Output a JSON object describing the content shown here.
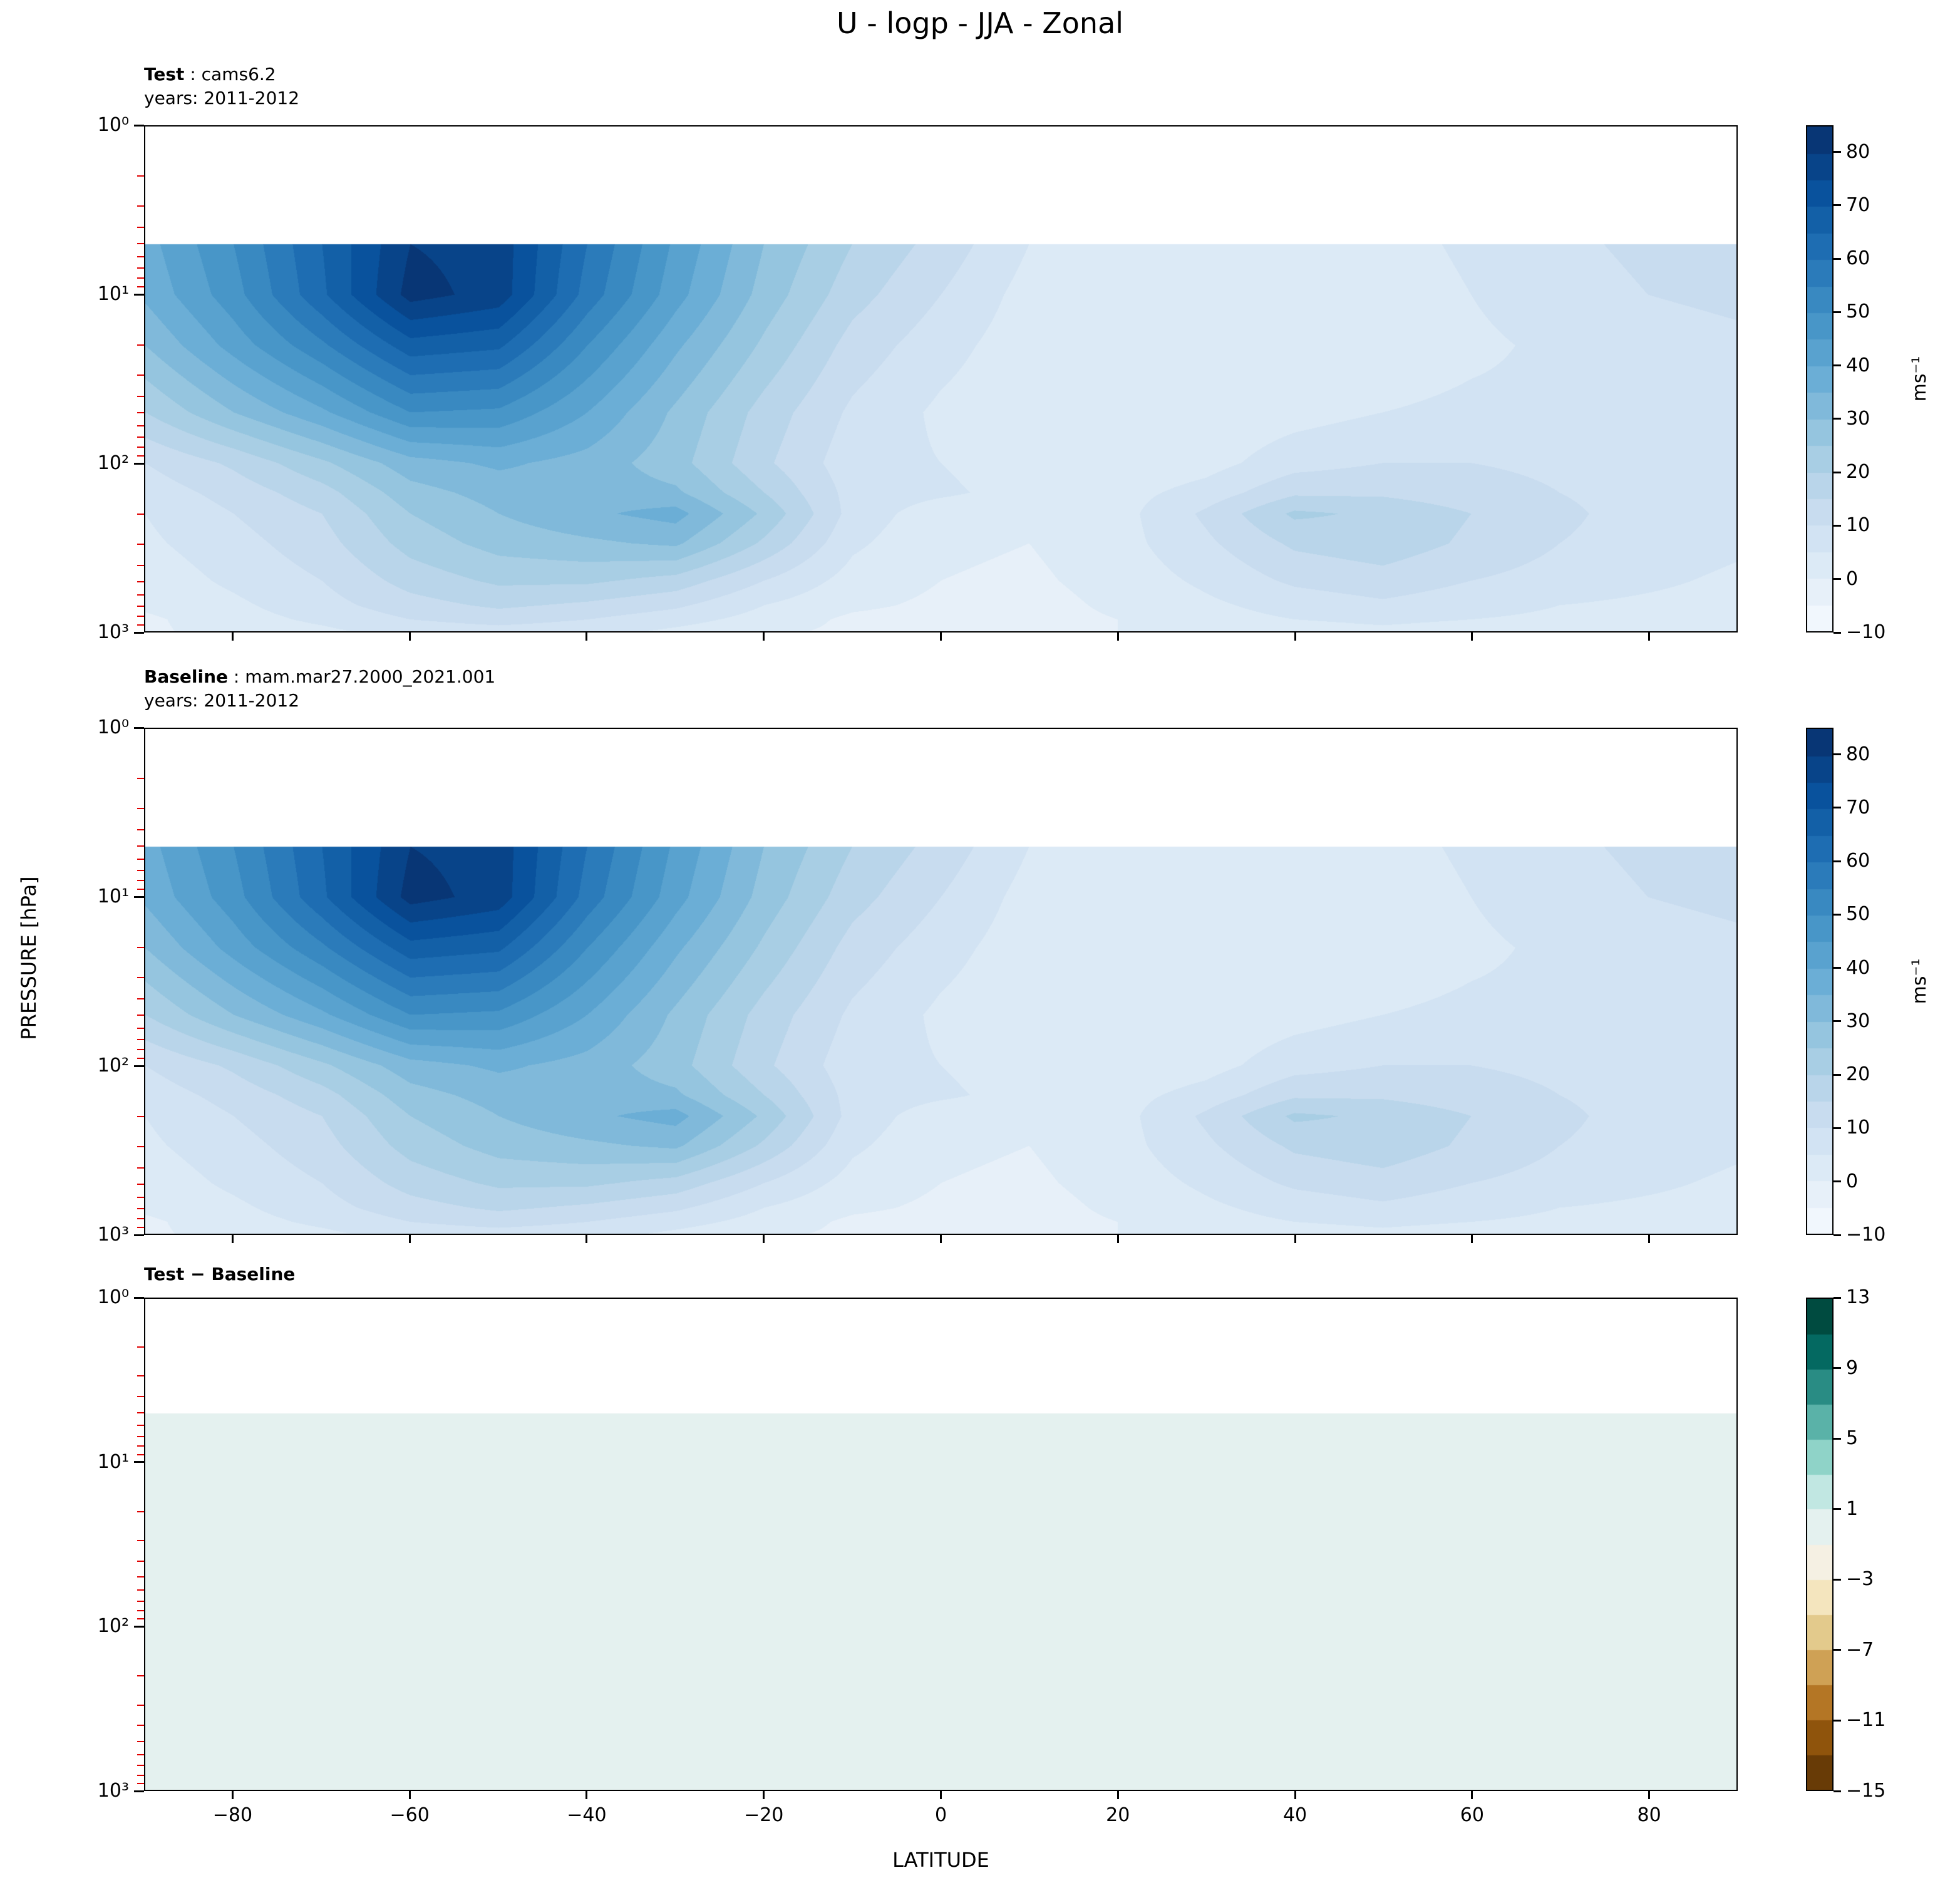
{
  "title": "U - logp - JJA - Zonal",
  "axes": {
    "x_label": "LATITUDE",
    "y_label": "PRESSURE [hPa]",
    "x_range": [
      -90,
      90
    ],
    "y_log_range": [
      0,
      3
    ],
    "x_ticks": [
      {
        "v": -80,
        "label": "−80"
      },
      {
        "v": -60,
        "label": "−60"
      },
      {
        "v": -40,
        "label": "−40"
      },
      {
        "v": -20,
        "label": "−20"
      },
      {
        "v": 0,
        "label": "0"
      },
      {
        "v": 20,
        "label": "20"
      },
      {
        "v": 40,
        "label": "40"
      },
      {
        "v": 60,
        "label": "60"
      },
      {
        "v": 80,
        "label": "80"
      }
    ],
    "y_ticks": [
      {
        "logp": 0,
        "label": "10⁰"
      },
      {
        "logp": 1,
        "label": "10¹"
      },
      {
        "logp": 2,
        "label": "10²"
      },
      {
        "logp": 3,
        "label": "10³"
      }
    ]
  },
  "colors": {
    "blues": [
      "#f7fbff",
      "#deebf7",
      "#c6dbef",
      "#9ecae1",
      "#6baed6",
      "#4292c6",
      "#2171b5",
      "#08519c",
      "#08306b"
    ],
    "brbg": [
      "#543005",
      "#8c510a",
      "#bf812d",
      "#dfc27d",
      "#f6e8c3",
      "#f5f5f5",
      "#c7eae5",
      "#80cdc1",
      "#35978f",
      "#01665e",
      "#003c30"
    ],
    "minor_tick": "#e00000",
    "spine": "#000000",
    "background": "#ffffff"
  },
  "panels": [
    {
      "id": "test",
      "label_bold": "Test",
      "label_rest": " : cams6.2",
      "subtitle": "years: 2011-2012",
      "colorbar": {
        "unit": "ms⁻¹",
        "colormap": "blues",
        "ticks": [
          {
            "v": 80,
            "label": "80"
          },
          {
            "v": 70,
            "label": "70"
          },
          {
            "v": 60,
            "label": "60"
          },
          {
            "v": 50,
            "label": "50"
          },
          {
            "v": 40,
            "label": "40"
          },
          {
            "v": 30,
            "label": "30"
          },
          {
            "v": 20,
            "label": "20"
          },
          {
            "v": 10,
            "label": "10"
          },
          {
            "v": 0,
            "label": "0"
          },
          {
            "v": -10,
            "label": "−10"
          }
        ]
      }
    },
    {
      "id": "baseline",
      "label_bold": "Baseline",
      "label_rest": " : mam.mar27.2000_2021.001",
      "subtitle": "years: 2011-2012",
      "colorbar": {
        "unit": "ms⁻¹",
        "colormap": "blues",
        "ticks": [
          {
            "v": 80,
            "label": "80"
          },
          {
            "v": 70,
            "label": "70"
          },
          {
            "v": 60,
            "label": "60"
          },
          {
            "v": 50,
            "label": "50"
          },
          {
            "v": 40,
            "label": "40"
          },
          {
            "v": 30,
            "label": "30"
          },
          {
            "v": 20,
            "label": "20"
          },
          {
            "v": 10,
            "label": "10"
          },
          {
            "v": 0,
            "label": "0"
          },
          {
            "v": -10,
            "label": "−10"
          }
        ]
      }
    },
    {
      "id": "diff",
      "label_bold": "Test − Baseline",
      "label_rest": "",
      "subtitle": "",
      "colorbar": {
        "unit": "",
        "colormap": "brbg",
        "ticks": [
          {
            "v": 13,
            "label": "13"
          },
          {
            "v": 9,
            "label": "9"
          },
          {
            "v": 5,
            "label": "5"
          },
          {
            "v": 1,
            "label": "1"
          },
          {
            "v": -3,
            "label": "−3"
          },
          {
            "v": -7,
            "label": "−7"
          },
          {
            "v": -11,
            "label": "−11"
          },
          {
            "v": -15,
            "label": "−15"
          }
        ]
      }
    }
  ],
  "chart_data": [
    {
      "type": "heatmap",
      "name": "Test : cams6.2",
      "subtitle": "years: 2011-2012",
      "title": "U - logp - JJA - Zonal",
      "xlabel": "LATITUDE",
      "ylabel": "PRESSURE [hPa]",
      "units": "ms⁻¹",
      "levels": {
        "min": -10,
        "max": 85,
        "step": 5
      },
      "x_latitudes": [
        -90,
        -80,
        -70,
        -60,
        -50,
        -40,
        -30,
        -20,
        -10,
        0,
        10,
        20,
        30,
        40,
        50,
        60,
        70,
        80,
        90
      ],
      "y_pressures_hPa": [
        5,
        10,
        20,
        50,
        100,
        150,
        200,
        300,
        500,
        700,
        850,
        1000
      ],
      "values": [
        [
          38,
          50,
          65,
          80,
          78,
          60,
          44,
          30,
          20,
          13,
          5,
          1,
          0,
          1,
          3,
          6,
          9,
          11,
          12
        ],
        [
          36,
          48,
          64,
          82,
          78,
          58,
          42,
          28,
          17,
          10,
          3,
          0,
          0,
          1,
          2,
          5,
          8,
          10,
          11
        ],
        [
          30,
          42,
          54,
          68,
          66,
          50,
          36,
          24,
          13,
          7,
          2,
          0,
          0,
          1,
          2,
          4,
          6,
          8,
          9
        ],
        [
          20,
          30,
          39,
          50,
          49,
          40,
          29,
          18,
          9,
          4,
          1,
          0,
          1,
          3,
          5,
          6,
          6,
          7,
          7
        ],
        [
          10,
          16,
          24,
          33,
          36,
          33,
          27,
          16,
          7,
          5,
          2,
          1,
          3,
          8,
          10,
          10,
          9,
          8,
          7
        ],
        [
          7,
          12,
          18,
          28,
          32,
          33,
          31,
          20,
          8,
          6,
          3,
          3,
          7,
          14,
          14,
          12,
          10,
          8,
          7
        ],
        [
          5,
          10,
          15,
          25,
          30,
          34,
          37,
          24,
          8,
          2,
          1,
          3,
          11,
          21,
          19,
          15,
          11,
          8,
          7
        ],
        [
          4,
          8,
          13,
          22,
          27,
          29,
          31,
          19,
          6,
          1,
          0,
          3,
          9,
          16,
          18,
          14,
          10,
          8,
          6
        ],
        [
          2,
          6,
          10,
          17,
          21,
          21,
          18,
          10,
          3,
          0,
          -1,
          2,
          6,
          11,
          13,
          10,
          8,
          6,
          4
        ],
        [
          1,
          4,
          8,
          13,
          16,
          14,
          11,
          5,
          1,
          -1,
          -2,
          1,
          4,
          7,
          9,
          7,
          5,
          4,
          3
        ],
        [
          -1,
          3,
          6,
          10,
          12,
          10,
          7,
          3,
          -1,
          -2,
          -2,
          0,
          3,
          5,
          6,
          5,
          4,
          3,
          2
        ],
        [
          -1,
          2,
          4,
          7,
          8,
          7,
          4,
          1,
          -1,
          -3,
          -3,
          0,
          2,
          3,
          4,
          3,
          2,
          2,
          1
        ]
      ]
    },
    {
      "type": "heatmap",
      "name": "Baseline : mam.mar27.2000_2021.001",
      "subtitle": "years: 2011-2012",
      "title": "U - logp - JJA - Zonal",
      "xlabel": "LATITUDE",
      "ylabel": "PRESSURE [hPa]",
      "units": "ms⁻¹",
      "levels": {
        "min": -10,
        "max": 85,
        "step": 5
      },
      "x_latitudes": [
        -90,
        -80,
        -70,
        -60,
        -50,
        -40,
        -30,
        -20,
        -10,
        0,
        10,
        20,
        30,
        40,
        50,
        60,
        70,
        80,
        90
      ],
      "y_pressures_hPa": [
        5,
        10,
        20,
        50,
        100,
        150,
        200,
        300,
        500,
        700,
        850,
        1000
      ],
      "values": [
        [
          38,
          50,
          65,
          80,
          78,
          60,
          44,
          30,
          20,
          13,
          5,
          1,
          0,
          1,
          3,
          6,
          9,
          11,
          12
        ],
        [
          36,
          48,
          64,
          82,
          78,
          58,
          42,
          28,
          17,
          10,
          3,
          0,
          0,
          1,
          2,
          5,
          8,
          10,
          11
        ],
        [
          30,
          42,
          54,
          68,
          66,
          50,
          36,
          24,
          13,
          7,
          2,
          0,
          0,
          1,
          2,
          4,
          6,
          8,
          9
        ],
        [
          20,
          30,
          39,
          50,
          49,
          40,
          29,
          18,
          9,
          4,
          1,
          0,
          1,
          3,
          5,
          6,
          6,
          7,
          7
        ],
        [
          10,
          16,
          24,
          33,
          36,
          33,
          27,
          16,
          7,
          5,
          2,
          1,
          3,
          8,
          10,
          10,
          9,
          8,
          7
        ],
        [
          7,
          12,
          18,
          28,
          32,
          33,
          31,
          20,
          8,
          6,
          3,
          3,
          7,
          14,
          14,
          12,
          10,
          8,
          7
        ],
        [
          5,
          10,
          15,
          25,
          30,
          34,
          37,
          24,
          8,
          2,
          1,
          3,
          11,
          21,
          19,
          15,
          11,
          8,
          7
        ],
        [
          4,
          8,
          13,
          22,
          27,
          29,
          31,
          19,
          6,
          1,
          0,
          3,
          9,
          16,
          18,
          14,
          10,
          8,
          6
        ],
        [
          2,
          6,
          10,
          17,
          21,
          21,
          18,
          10,
          3,
          0,
          -1,
          2,
          6,
          11,
          13,
          10,
          8,
          6,
          4
        ],
        [
          1,
          4,
          8,
          13,
          16,
          14,
          11,
          5,
          1,
          -1,
          -2,
          1,
          4,
          7,
          9,
          7,
          5,
          4,
          3
        ],
        [
          -1,
          3,
          6,
          10,
          12,
          10,
          7,
          3,
          -1,
          -2,
          -2,
          0,
          3,
          5,
          6,
          5,
          4,
          3,
          2
        ],
        [
          -1,
          2,
          4,
          7,
          8,
          7,
          4,
          1,
          -1,
          -3,
          -3,
          0,
          2,
          3,
          4,
          3,
          2,
          2,
          1
        ]
      ]
    },
    {
      "type": "heatmap",
      "name": "Test − Baseline",
      "subtitle": "",
      "title": "U - logp - JJA - Zonal",
      "xlabel": "LATITUDE",
      "ylabel": "PRESSURE [hPa]",
      "units": "ms⁻¹",
      "levels": {
        "min": -15,
        "max": 13,
        "step": 2
      },
      "x_latitudes": [
        -90,
        -80,
        -70,
        -60,
        -50,
        -40,
        -30,
        -20,
        -10,
        0,
        10,
        20,
        30,
        40,
        50,
        60,
        70,
        80,
        90
      ],
      "y_pressures_hPa": [
        5,
        10,
        20,
        50,
        100,
        150,
        200,
        300,
        500,
        700,
        850,
        1000
      ],
      "values": [
        [
          0,
          0,
          0,
          0,
          0,
          0,
          0,
          0,
          0,
          0,
          0,
          0,
          0,
          0,
          0,
          0,
          0,
          0,
          0
        ],
        [
          0,
          0,
          0,
          0,
          0,
          0,
          0,
          0,
          0,
          0,
          0,
          0,
          0,
          0,
          0,
          0,
          0,
          0,
          0
        ],
        [
          0,
          0,
          0,
          0,
          0,
          0,
          0,
          0,
          0,
          0,
          0,
          0,
          0,
          0,
          0,
          0,
          0,
          0,
          0
        ],
        [
          0,
          0,
          0,
          0,
          0,
          0,
          0,
          0,
          0,
          0,
          0,
          0,
          0,
          0,
          0,
          0,
          0,
          0,
          0
        ],
        [
          0,
          0,
          0,
          0,
          0,
          0,
          0,
          0,
          0,
          0,
          0,
          0,
          0,
          0,
          0,
          0,
          0,
          0,
          0
        ],
        [
          0,
          0,
          0,
          0,
          0,
          0,
          0,
          0,
          0,
          0,
          0,
          0,
          0,
          0,
          0,
          0,
          0,
          0,
          0
        ],
        [
          0,
          0,
          0,
          0,
          0,
          0,
          0,
          0,
          0,
          0,
          0,
          0,
          0,
          0,
          0,
          0,
          0,
          0,
          0
        ],
        [
          0,
          0,
          0,
          0,
          0,
          0,
          0,
          0,
          0,
          0,
          0,
          0,
          0,
          0,
          0,
          0,
          0,
          0,
          0
        ],
        [
          0,
          0,
          0,
          0,
          0,
          0,
          0,
          0,
          0,
          0,
          0,
          0,
          0,
          0,
          0,
          0,
          0,
          0,
          0
        ],
        [
          0,
          0,
          0,
          0,
          0,
          0,
          0,
          0,
          0,
          0,
          0,
          0,
          0,
          0,
          0,
          0,
          0,
          0,
          0
        ],
        [
          0,
          0,
          0,
          0,
          0,
          0,
          0,
          0,
          0,
          0,
          0,
          0,
          0,
          0,
          0,
          0,
          0,
          0,
          0
        ],
        [
          0,
          0,
          0,
          0,
          0,
          0,
          0,
          0,
          0,
          0,
          0,
          0,
          0,
          0,
          0,
          0,
          0,
          0,
          0
        ]
      ]
    }
  ]
}
